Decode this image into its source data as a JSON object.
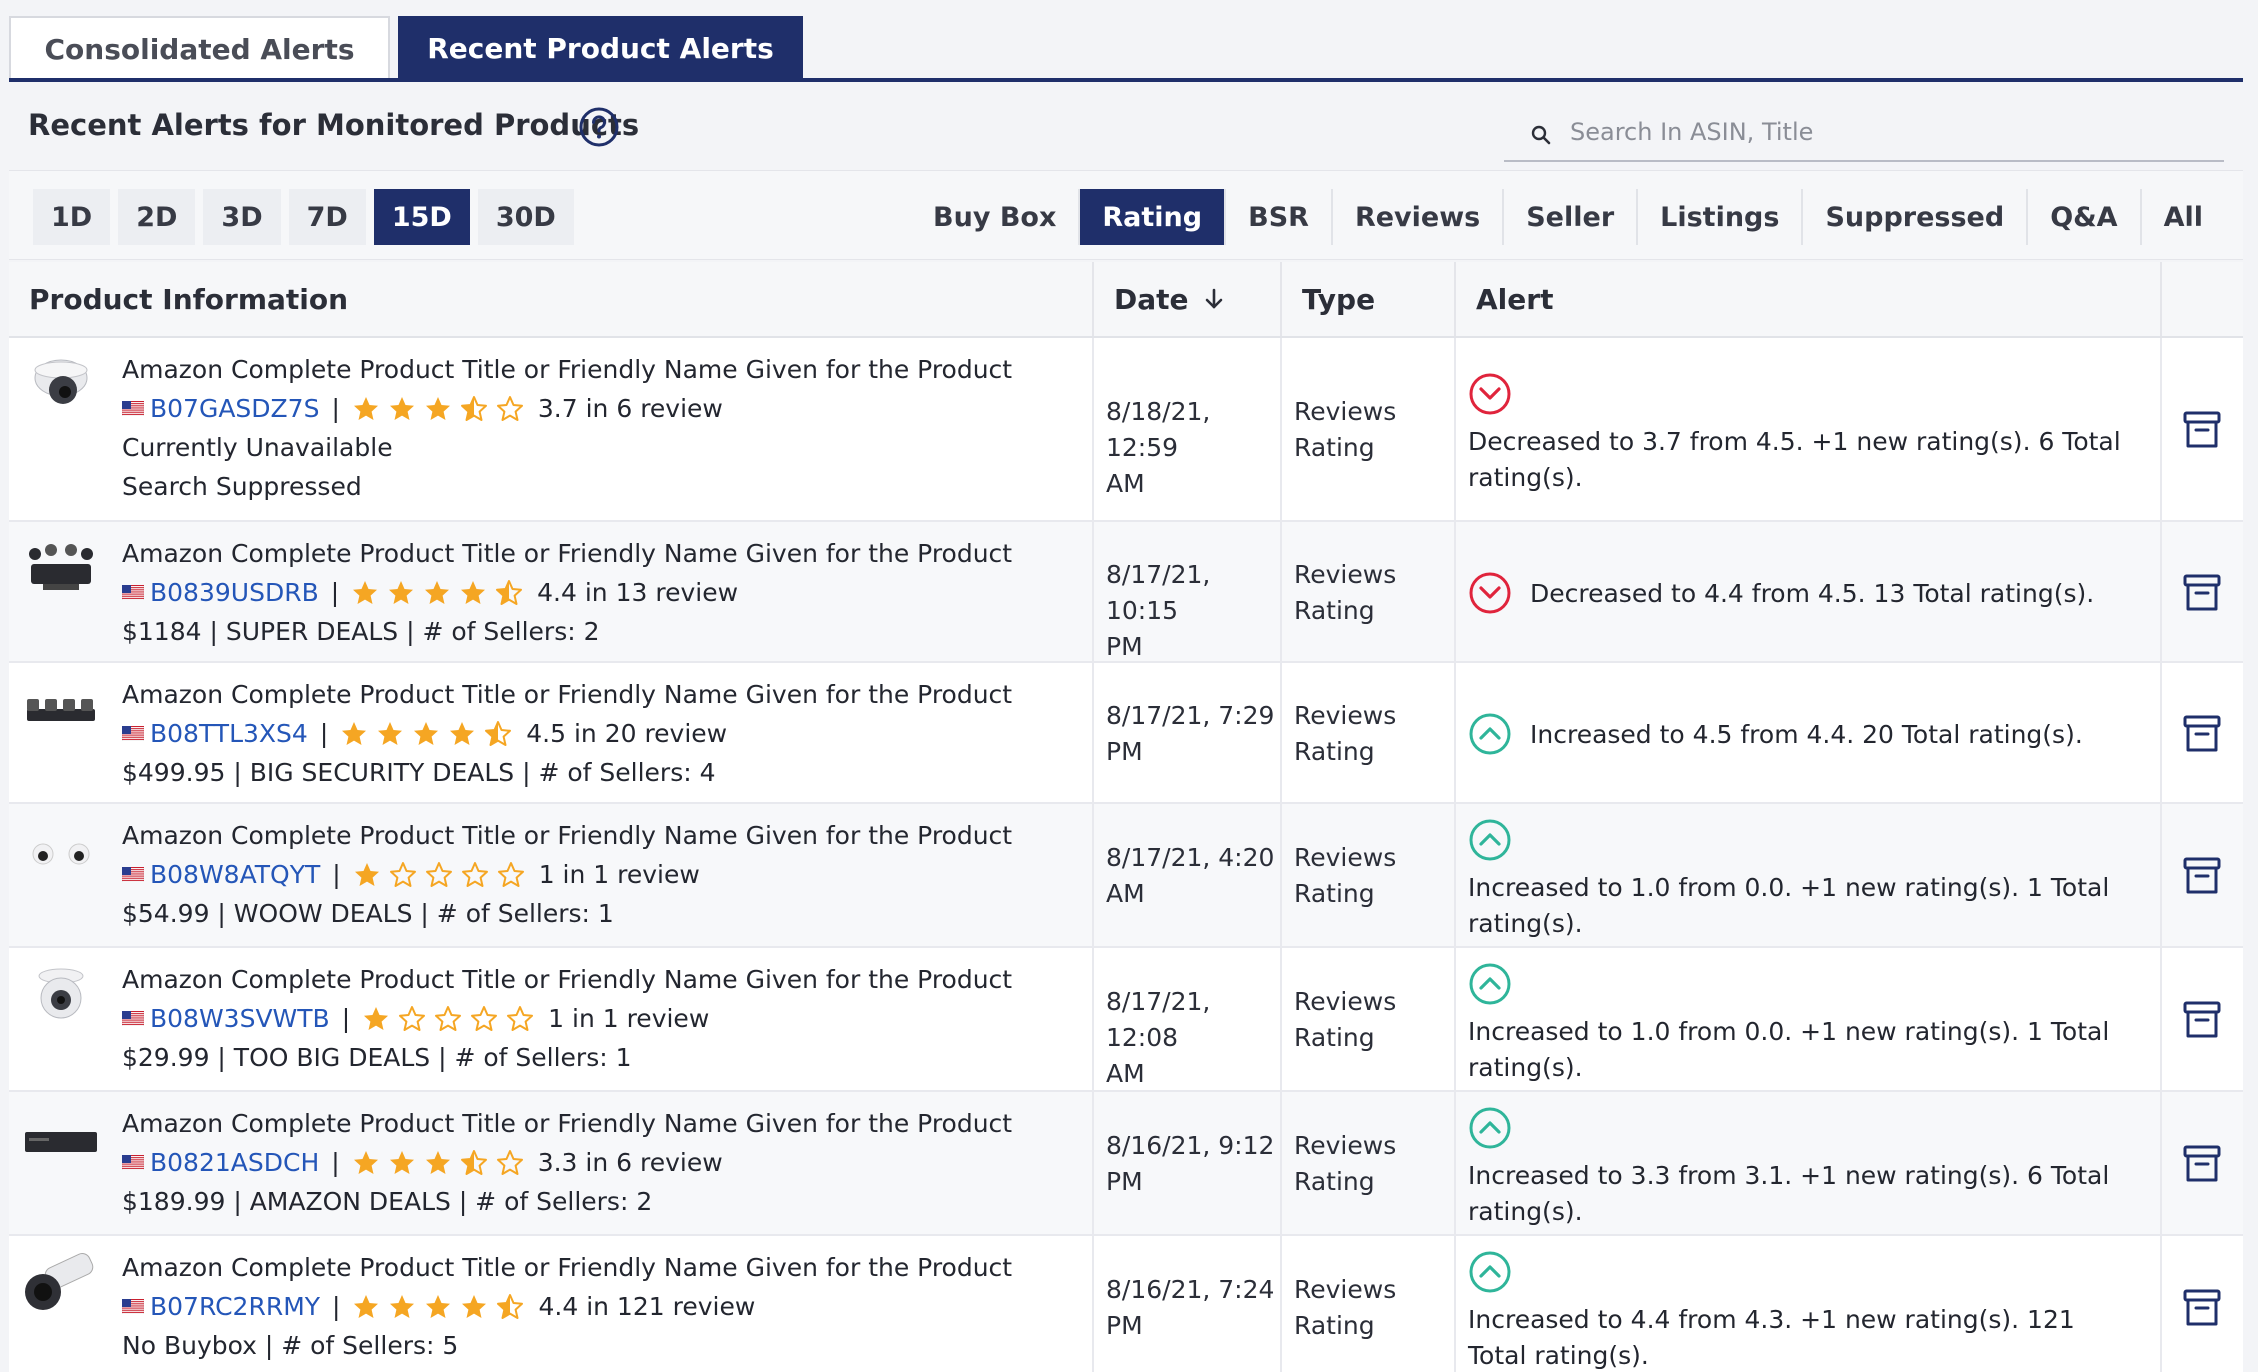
{
  "tabs": {
    "consolidated": "Consolidated Alerts",
    "recent": "Recent Product Alerts"
  },
  "header": {
    "title": "Recent Alerts for Monitored Products",
    "search_placeholder": "Search In ASIN, Title"
  },
  "ranges": [
    "1D",
    "2D",
    "3D",
    "7D",
    "15D",
    "30D"
  ],
  "active_range": "15D",
  "alert_types": [
    "Buy Box",
    "Rating",
    "BSR",
    "Reviews",
    "Seller",
    "Listings",
    "Suppressed",
    "Q&A",
    "All"
  ],
  "active_type": "Rating",
  "columns": {
    "product": "Product Information",
    "date": "Date",
    "type": "Type",
    "alert": "Alert"
  },
  "colors": {
    "navy": "#1f2f6a",
    "decrease": "#e0243c",
    "increase": "#2fb59a",
    "star": "#f5a623",
    "link": "#2456b8"
  },
  "rows": [
    {
      "title": "Amazon Complete Product Title or Friendly Name Given for the Product",
      "asin": "B07GASDZ7S",
      "rating": 3.7,
      "rating_text": "3.7 in 6 review",
      "extra": [
        "Currently Unavailable",
        "Search Suppressed"
      ],
      "date_l1": "8/18/21, 12:59",
      "date_l2": "AM",
      "type_l1": "Reviews",
      "type_l2": "Rating",
      "direction": "down",
      "alert": "Decreased to 3.7 from 4.5. +1 new rating(s). 6 Total rating(s).",
      "thumb": "dome-camera"
    },
    {
      "title": "Amazon Complete Product Title or Friendly Name Given for the Product",
      "asin": "B0839USDRB",
      "rating": 4.4,
      "rating_text": "4.4 in 13 review",
      "extra": [
        "$1184 | SUPER DEALS |  # of Sellers: 2"
      ],
      "date_l1": "8/17/21, 10:15",
      "date_l2": "PM",
      "type_l1": "Reviews",
      "type_l2": "Rating",
      "direction": "down",
      "alert": "Decreased to 4.4 from 4.5. 13 Total rating(s).",
      "thumb": "camera-kit"
    },
    {
      "title": "Amazon Complete Product Title or Friendly Name Given for the Product",
      "asin": "B08TTL3XS4",
      "rating": 4.5,
      "rating_text": "4.5 in 20 review",
      "extra": [
        "$499.95 | BIG SECURITY DEALS |  # of Sellers: 4"
      ],
      "date_l1": "8/17/21, 7:29",
      "date_l2": "PM",
      "type_l1": "Reviews",
      "type_l2": "Rating",
      "direction": "up",
      "alert": "Increased to 4.5 from 4.4. 20 Total rating(s).",
      "thumb": "camera-set"
    },
    {
      "title": "Amazon Complete Product Title or Friendly Name Given for the Product",
      "asin": "B08W8ATQYT",
      "rating": 1,
      "rating_text": "1 in 1 review",
      "extra": [
        "$54.99 | WOOW DEALS |  # of Sellers: 1"
      ],
      "date_l1": "8/17/21, 4:20",
      "date_l2": "AM",
      "type_l1": "Reviews",
      "type_l2": "Rating",
      "direction": "up",
      "alert": "Increased to 1.0 from 0.0. +1 new rating(s). 1 Total rating(s).",
      "thumb": "mini-cameras"
    },
    {
      "title": "Amazon Complete Product Title or Friendly Name Given for the Product",
      "asin": "B08W3SVWTB",
      "rating": 1,
      "rating_text": "1 in 1 review",
      "extra": [
        "$29.99 | TOO BIG DEALS |  # of Sellers: 1"
      ],
      "date_l1": "8/17/21, 12:08",
      "date_l2": "AM",
      "type_l1": "Reviews",
      "type_l2": "Rating",
      "direction": "up",
      "alert": "Increased to 1.0 from 0.0. +1 new rating(s). 1 Total rating(s).",
      "thumb": "turret-camera"
    },
    {
      "title": "Amazon Complete Product Title or Friendly Name Given for the Product",
      "asin": "B0821ASDCH",
      "rating": 3.3,
      "rating_text": "3.3 in 6 review",
      "extra": [
        "$189.99 | AMAZON DEALS |  # of Sellers: 2"
      ],
      "date_l1": "8/16/21, 9:12",
      "date_l2": "PM",
      "type_l1": "Reviews",
      "type_l2": "Rating",
      "direction": "up",
      "alert": "Increased to 3.3 from 3.1. +1 new rating(s). 6 Total rating(s).",
      "thumb": "nvr-box"
    },
    {
      "title": "Amazon Complete Product Title or Friendly Name Given for the Product",
      "asin": "B07RC2RRMY",
      "rating": 4.4,
      "rating_text": "4.4 in 121 review",
      "extra": [
        "No Buybox |  # of Sellers: 5"
      ],
      "date_l1": "8/16/21, 7:24",
      "date_l2": "PM",
      "type_l1": "Reviews",
      "type_l2": "Rating",
      "direction": "up",
      "alert": "Increased to 4.4 from 4.3. +1 new rating(s). 121 Total rating(s).",
      "thumb": "bullet-camera"
    }
  ]
}
